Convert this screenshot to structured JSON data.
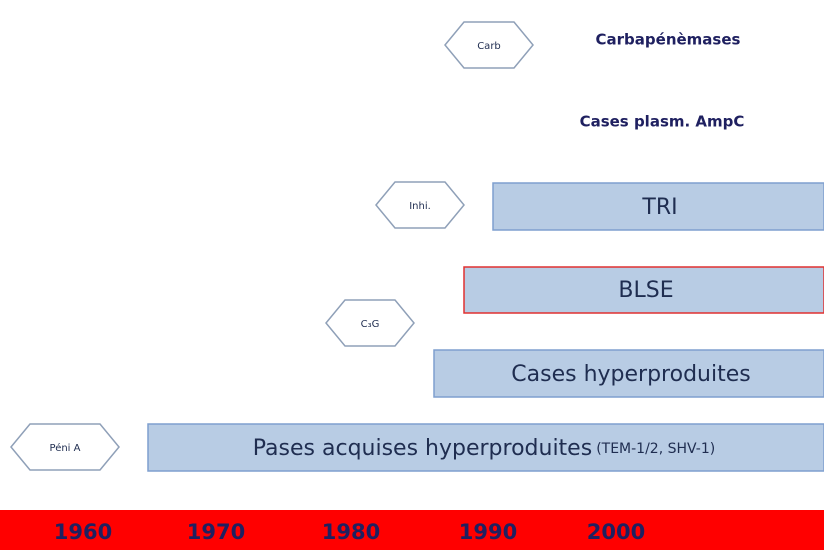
{
  "hexagons": [
    {
      "label": "Carb"
    },
    {
      "label": "Inhi."
    },
    {
      "label": "C₃G"
    },
    {
      "label": "Péni A"
    }
  ],
  "headings": [
    "Carbapénèmases",
    "Cases plasm. AmpC"
  ],
  "bars": [
    {
      "label": "TRI"
    },
    {
      "label": "BLSE"
    },
    {
      "label": "Cases hyperproduites"
    },
    {
      "label": "Pases acquises hyperproduites",
      "note": "(TEM-1/2, SHV-1)"
    }
  ],
  "timeline": [
    "1960",
    "1970",
    "1980",
    "1990",
    "2000"
  ]
}
